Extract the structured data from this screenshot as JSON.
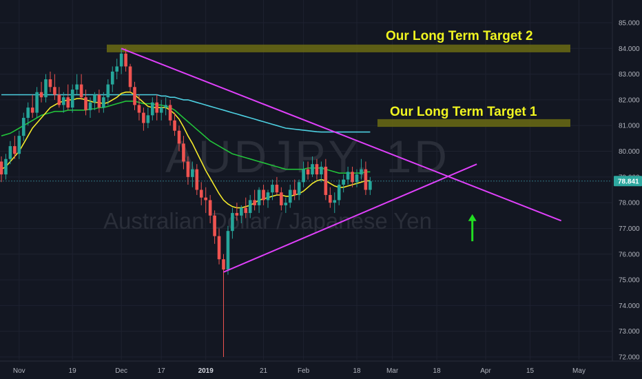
{
  "chart_data": {
    "type": "candlestick",
    "symbol_watermark": "AUDJPY, 1D",
    "name_watermark": "Australian Dollar / Japanese Yen",
    "last_price": "78.841",
    "y_axis": {
      "ticks": [
        72,
        73,
        74,
        75,
        76,
        77,
        78,
        79,
        80,
        81,
        82,
        83,
        84,
        85
      ],
      "tick_labels": [
        "72.000",
        "73.000",
        "74.000",
        "75.000",
        "76.000",
        "77.000",
        "78.000",
        "79.000",
        "80.000",
        "81.000",
        "82.000",
        "83.000",
        "84.000",
        "85.000"
      ],
      "ylim": [
        71.9,
        85.5
      ]
    },
    "x_axis": {
      "labels": [
        "Nov",
        "19",
        "Dec",
        "17",
        "2019",
        "21",
        "Feb",
        "18",
        "Mar",
        "18",
        "Apr",
        "15",
        "May"
      ],
      "bold_labels": [
        "2019"
      ]
    },
    "colors": {
      "up": "#26a69a",
      "down": "#ef5350",
      "ma_fast": "#f5ea2a",
      "ma_mid": "#22c33a",
      "ma_slow": "#4dd0e1",
      "trendline": "#e040fb",
      "zone": "#6b6b13",
      "zone_text": "#f0f520",
      "arrow": "#22dd22"
    },
    "candles": [
      [
        79.6,
        79.8,
        78.8,
        79.1
      ],
      [
        79.1,
        79.9,
        78.9,
        79.7
      ],
      [
        79.7,
        80.4,
        79.5,
        80.2
      ],
      [
        80.2,
        80.6,
        79.7,
        79.9
      ],
      [
        79.9,
        80.8,
        79.7,
        80.6
      ],
      [
        80.6,
        81.5,
        80.4,
        81.3
      ],
      [
        81.3,
        81.9,
        81.0,
        81.7
      ],
      [
        81.7,
        82.2,
        81.3,
        81.5
      ],
      [
        81.5,
        82.5,
        81.3,
        82.3
      ],
      [
        82.3,
        82.7,
        81.9,
        82.1
      ],
      [
        82.1,
        83.0,
        81.9,
        82.8
      ],
      [
        82.8,
        83.1,
        82.3,
        82.5
      ],
      [
        82.5,
        83.0,
        82.0,
        82.2
      ],
      [
        82.2,
        82.5,
        81.7,
        81.8
      ],
      [
        81.8,
        82.3,
        81.5,
        82.1
      ],
      [
        82.1,
        82.6,
        81.6,
        81.7
      ],
      [
        81.7,
        82.6,
        81.5,
        82.4
      ],
      [
        82.4,
        83.0,
        82.2,
        82.6
      ],
      [
        82.6,
        83.0,
        82.0,
        82.1
      ],
      [
        82.1,
        82.4,
        81.4,
        81.6
      ],
      [
        81.6,
        82.1,
        81.3,
        81.9
      ],
      [
        81.9,
        82.3,
        81.6,
        82.2
      ],
      [
        82.2,
        82.4,
        81.5,
        81.7
      ],
      [
        81.7,
        82.3,
        81.5,
        82.1
      ],
      [
        82.1,
        82.8,
        81.8,
        82.6
      ],
      [
        82.6,
        83.3,
        82.3,
        83.1
      ],
      [
        83.1,
        83.6,
        82.8,
        83.3
      ],
      [
        83.3,
        84.0,
        83.0,
        83.8
      ],
      [
        83.8,
        84.0,
        83.1,
        83.3
      ],
      [
        83.3,
        83.4,
        82.3,
        82.5
      ],
      [
        82.5,
        82.7,
        81.6,
        81.8
      ],
      [
        81.8,
        82.2,
        81.2,
        81.5
      ],
      [
        81.5,
        81.7,
        80.8,
        81.1
      ],
      [
        81.1,
        81.7,
        80.9,
        81.4
      ],
      [
        81.4,
        82.1,
        81.2,
        81.9
      ],
      [
        81.9,
        82.2,
        81.2,
        81.5
      ],
      [
        81.5,
        82.0,
        81.2,
        81.7
      ],
      [
        81.7,
        82.1,
        81.4,
        81.8
      ],
      [
        81.8,
        82.0,
        81.0,
        81.2
      ],
      [
        81.2,
        81.5,
        80.6,
        80.8
      ],
      [
        80.8,
        81.0,
        80.0,
        80.3
      ],
      [
        80.3,
        80.6,
        79.3,
        79.6
      ],
      [
        79.6,
        79.8,
        78.7,
        79.0
      ],
      [
        79.0,
        79.6,
        78.6,
        79.3
      ],
      [
        79.3,
        79.5,
        78.3,
        78.5
      ],
      [
        78.5,
        78.8,
        77.9,
        78.2
      ],
      [
        78.2,
        78.6,
        77.6,
        78.1
      ],
      [
        78.1,
        78.3,
        77.2,
        77.5
      ],
      [
        77.5,
        77.7,
        76.4,
        76.7
      ],
      [
        76.7,
        77.0,
        75.6,
        75.8
      ],
      [
        75.8,
        76.0,
        72.0,
        75.4
      ],
      [
        75.4,
        77.1,
        75.2,
        76.9
      ],
      [
        76.9,
        77.8,
        76.6,
        77.6
      ],
      [
        77.6,
        78.0,
        77.3,
        77.5
      ],
      [
        77.5,
        77.9,
        77.2,
        77.8
      ],
      [
        77.8,
        78.2,
        77.4,
        77.6
      ],
      [
        77.6,
        78.3,
        77.4,
        78.1
      ],
      [
        78.1,
        78.5,
        77.7,
        77.9
      ],
      [
        77.9,
        78.6,
        77.6,
        78.5
      ],
      [
        78.5,
        78.7,
        77.9,
        78.1
      ],
      [
        78.1,
        78.5,
        77.8,
        78.4
      ],
      [
        78.4,
        78.9,
        78.1,
        78.7
      ],
      [
        78.7,
        79.0,
        78.3,
        78.4
      ],
      [
        78.4,
        78.6,
        77.7,
        77.9
      ],
      [
        77.9,
        78.2,
        77.6,
        78.0
      ],
      [
        78.0,
        78.7,
        77.8,
        78.5
      ],
      [
        78.5,
        78.9,
        78.1,
        78.3
      ],
      [
        78.3,
        78.9,
        78.1,
        78.8
      ],
      [
        78.8,
        79.6,
        78.6,
        79.3
      ],
      [
        79.3,
        79.6,
        78.9,
        79.1
      ],
      [
        79.1,
        79.8,
        79.0,
        79.5
      ],
      [
        79.5,
        79.7,
        78.9,
        79.1
      ],
      [
        79.1,
        79.6,
        78.8,
        79.4
      ],
      [
        79.4,
        79.7,
        78.1,
        78.3
      ],
      [
        78.3,
        78.6,
        77.8,
        78.0
      ],
      [
        78.0,
        78.4,
        77.6,
        78.1
      ],
      [
        78.1,
        78.9,
        77.9,
        78.7
      ],
      [
        78.7,
        79.1,
        78.4,
        78.9
      ],
      [
        78.9,
        79.4,
        78.7,
        79.2
      ],
      [
        79.2,
        79.4,
        78.6,
        78.8
      ],
      [
        78.8,
        79.3,
        78.6,
        79.1
      ],
      [
        79.1,
        79.7,
        78.9,
        79.3
      ],
      [
        79.3,
        79.6,
        78.3,
        78.5
      ],
      [
        78.5,
        79.0,
        78.3,
        78.84
      ]
    ],
    "ma_fast": [
      79.3,
      79.4,
      79.6,
      79.8,
      80.0,
      80.3,
      80.6,
      80.9,
      81.1,
      81.3,
      81.5,
      81.7,
      81.8,
      81.9,
      81.95,
      82.0,
      82.0,
      82.05,
      82.05,
      82.0,
      81.95,
      81.9,
      81.9,
      81.85,
      81.9,
      82.0,
      82.1,
      82.25,
      82.3,
      82.3,
      82.2,
      82.05,
      81.9,
      81.75,
      81.7,
      81.7,
      81.7,
      81.7,
      81.6,
      81.45,
      81.25,
      80.95,
      80.6,
      80.3,
      79.95,
      79.6,
      79.25,
      78.95,
      78.65,
      78.35,
      78.1,
      77.95,
      77.85,
      77.8,
      77.8,
      77.85,
      77.9,
      78.0,
      78.1,
      78.15,
      78.2,
      78.25,
      78.3,
      78.3,
      78.25,
      78.25,
      78.3,
      78.35,
      78.45,
      78.6,
      78.75,
      78.85,
      78.9,
      78.85,
      78.75,
      78.65,
      78.6,
      78.6,
      78.65,
      78.7,
      78.75,
      78.8,
      78.85,
      78.85
    ],
    "ma_mid": [
      80.6,
      80.65,
      80.7,
      80.8,
      80.9,
      81.0,
      81.1,
      81.2,
      81.3,
      81.4,
      81.45,
      81.5,
      81.55,
      81.55,
      81.55,
      81.6,
      81.6,
      81.6,
      81.6,
      81.6,
      81.65,
      81.65,
      81.7,
      81.7,
      81.75,
      81.8,
      81.85,
      81.9,
      81.95,
      81.95,
      81.95,
      81.9,
      81.85,
      81.85,
      81.85,
      81.8,
      81.8,
      81.75,
      81.7,
      81.6,
      81.45,
      81.3,
      81.15,
      81.0,
      80.85,
      80.7,
      80.55,
      80.4,
      80.3,
      80.2,
      80.1,
      80.0,
      79.9,
      79.85,
      79.8,
      79.75,
      79.7,
      79.65,
      79.6,
      79.55,
      79.5,
      79.45,
      79.4,
      79.35,
      79.3,
      79.3,
      79.3,
      79.3,
      79.3,
      79.35,
      79.35,
      79.35,
      79.35,
      79.3,
      79.25,
      79.2,
      79.15,
      79.15,
      79.15,
      79.15,
      79.15,
      79.15,
      79.2,
      79.2
    ],
    "ma_slow": [
      82.2,
      82.2,
      82.2,
      82.2,
      82.2,
      82.2,
      82.2,
      82.2,
      82.2,
      82.2,
      82.2,
      82.2,
      82.2,
      82.2,
      82.2,
      82.2,
      82.2,
      82.2,
      82.2,
      82.2,
      82.2,
      82.2,
      82.2,
      82.2,
      82.2,
      82.2,
      82.2,
      82.2,
      82.2,
      82.2,
      82.2,
      82.2,
      82.2,
      82.2,
      82.2,
      82.2,
      82.15,
      82.15,
      82.1,
      82.1,
      82.05,
      82.0,
      82.0,
      81.95,
      81.9,
      81.85,
      81.8,
      81.75,
      81.7,
      81.65,
      81.6,
      81.55,
      81.5,
      81.45,
      81.4,
      81.35,
      81.3,
      81.25,
      81.2,
      81.15,
      81.1,
      81.05,
      81.0,
      80.95,
      80.9,
      80.88,
      80.86,
      80.84,
      80.82,
      80.8,
      80.78,
      80.76,
      80.75,
      80.75,
      80.75,
      80.75,
      80.75,
      80.75,
      80.75,
      80.75,
      80.75,
      80.75,
      80.75,
      80.75
    ],
    "annotations": {
      "zone_target_2": {
        "label": "Our Long Term Target 2",
        "y_low": 83.85,
        "y_high": 84.15
      },
      "zone_target_1": {
        "label": "Our Long Term Target 1",
        "y_low": 80.95,
        "y_high": 81.25
      },
      "descending_trendline": {
        "from": {
          "bar": 27,
          "price": 84.0
        },
        "to": {
          "bar": 126,
          "price": 77.3
        }
      },
      "ascending_trendline": {
        "from": {
          "bar": 50,
          "price": 75.3
        },
        "to": {
          "bar": 107,
          "price": 79.5
        }
      },
      "arrow": {
        "bar": 106,
        "from_price": 76.5,
        "to_price": 77.5,
        "direction": "up"
      }
    }
  }
}
